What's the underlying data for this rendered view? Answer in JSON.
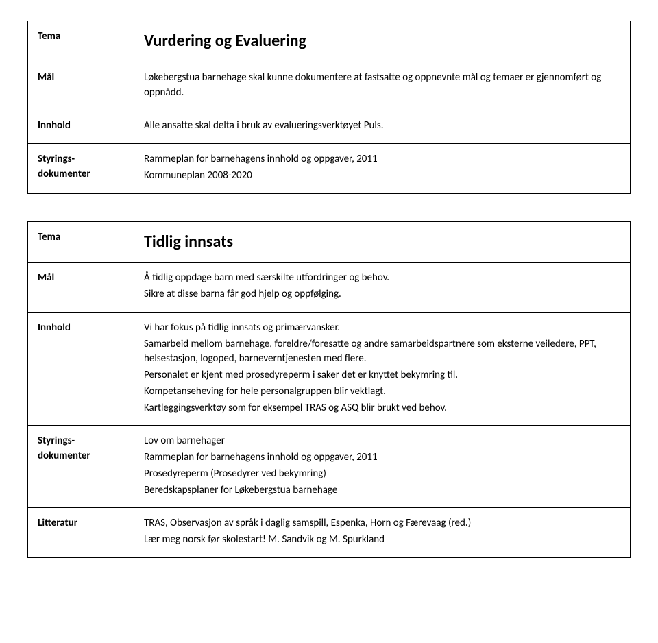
{
  "table1": {
    "rows": [
      {
        "label": "Tema",
        "title": "Vurdering og Evaluering"
      },
      {
        "label": "Mål",
        "lines": [
          "Løkebergstua barnehage skal kunne dokumentere at fastsatte og oppnevnte mål og temaer er gjennomført og oppnådd."
        ]
      },
      {
        "label": "Innhold",
        "lines": [
          "Alle ansatte skal delta i bruk av evalueringsverktøyet Puls."
        ]
      },
      {
        "label": "Styrings-dokumenter",
        "lines": [
          "Rammeplan for barnehagens innhold og oppgaver, 2011",
          "Kommuneplan 2008-2020"
        ]
      }
    ]
  },
  "table2": {
    "rows": [
      {
        "label": "Tema",
        "title": "Tidlig innsats"
      },
      {
        "label": "Mål",
        "lines": [
          "Å tidlig oppdage barn med særskilte utfordringer og behov.",
          "Sikre at disse barna får god hjelp og oppfølging."
        ]
      },
      {
        "label": "Innhold",
        "lines": [
          "Vi har fokus på tidlig innsats og primærvansker.",
          "Samarbeid mellom barnehage, foreldre/foresatte og andre samarbeidspartnere som eksterne veiledere, PPT, helsestasjon, logoped, barneverntjenesten med flere.",
          "Personalet er kjent med prosedyreperm i saker det er knyttet bekymring til.",
          "Kompetanseheving for hele personalgruppen blir vektlagt.",
          "Kartleggingsverktøy som for eksempel TRAS og ASQ blir brukt ved behov."
        ]
      },
      {
        "label": "Styrings-dokumenter",
        "lines": [
          "Lov om barnehager",
          "Rammeplan for barnehagens innhold og oppgaver, 2011",
          "Prosedyreperm (Prosedyrer ved bekymring)",
          "Beredskapsplaner for Løkebergstua barnehage"
        ]
      },
      {
        "label": "Litteratur",
        "lines": [
          "TRAS, Observasjon av språk i daglig samspill, Espenka, Horn og Færevaag (red.)",
          "Lær meg norsk før skolestart! M. Sandvik og M. Spurkland"
        ]
      }
    ]
  }
}
